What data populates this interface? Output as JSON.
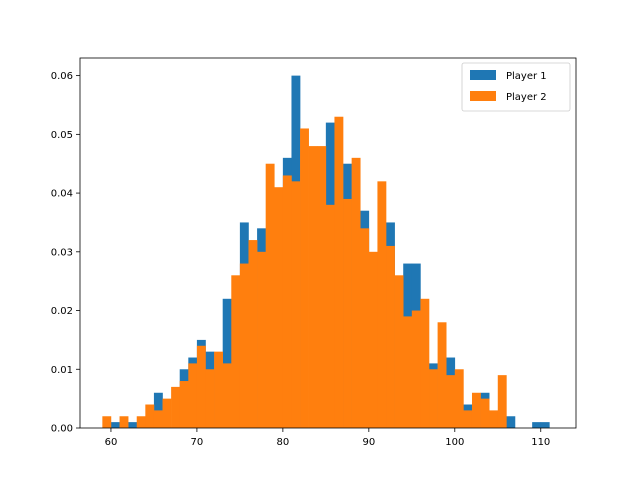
{
  "chart_data": {
    "type": "bar",
    "title": "",
    "xlabel": "",
    "ylabel": "",
    "xlim": [
      56.4,
      114.1
    ],
    "ylim": [
      0,
      0.063
    ],
    "xticks": [
      60,
      70,
      80,
      90,
      100,
      110
    ],
    "xtick_labels": [
      "60",
      "70",
      "80",
      "90",
      "100",
      "110"
    ],
    "yticks": [
      0.0,
      0.01,
      0.02,
      0.03,
      0.04,
      0.05,
      0.06
    ],
    "ytick_labels": [
      "0.00",
      "0.01",
      "0.02",
      "0.03",
      "0.04",
      "0.05",
      "0.06"
    ],
    "grid": false,
    "legend_position": "top-right",
    "series": [
      {
        "name": "Player 1",
        "color": "#1f77b4",
        "bin_width": 1.0,
        "bins": [
          {
            "x": 60,
            "y": 0.001
          },
          {
            "x": 62,
            "y": 0.001
          },
          {
            "x": 65,
            "y": 0.006
          },
          {
            "x": 68,
            "y": 0.01
          },
          {
            "x": 69,
            "y": 0.012
          },
          {
            "x": 70,
            "y": 0.015
          },
          {
            "x": 71,
            "y": 0.013
          },
          {
            "x": 73,
            "y": 0.022
          },
          {
            "x": 75,
            "y": 0.035
          },
          {
            "x": 77,
            "y": 0.034
          },
          {
            "x": 80,
            "y": 0.046
          },
          {
            "x": 81,
            "y": 0.06
          },
          {
            "x": 85,
            "y": 0.052
          },
          {
            "x": 87,
            "y": 0.045
          },
          {
            "x": 89,
            "y": 0.037
          },
          {
            "x": 92,
            "y": 0.035
          },
          {
            "x": 94,
            "y": 0.028
          },
          {
            "x": 95,
            "y": 0.028
          },
          {
            "x": 97,
            "y": 0.011
          },
          {
            "x": 99,
            "y": 0.012
          },
          {
            "x": 101,
            "y": 0.004
          },
          {
            "x": 103,
            "y": 0.006
          },
          {
            "x": 106,
            "y": 0.002
          },
          {
            "x": 109,
            "y": 0.001
          },
          {
            "x": 110,
            "y": 0.001
          }
        ]
      },
      {
        "name": "Player 2",
        "color": "#ff7f0e",
        "bin_width": 1.0,
        "bins": [
          {
            "x": 59,
            "y": 0.002
          },
          {
            "x": 60,
            "y": 0.0
          },
          {
            "x": 61,
            "y": 0.002
          },
          {
            "x": 62,
            "y": 0.0
          },
          {
            "x": 63,
            "y": 0.002
          },
          {
            "x": 64,
            "y": 0.004
          },
          {
            "x": 65,
            "y": 0.003
          },
          {
            "x": 66,
            "y": 0.005
          },
          {
            "x": 67,
            "y": 0.007
          },
          {
            "x": 68,
            "y": 0.008
          },
          {
            "x": 69,
            "y": 0.011
          },
          {
            "x": 70,
            "y": 0.014
          },
          {
            "x": 71,
            "y": 0.01
          },
          {
            "x": 72,
            "y": 0.013
          },
          {
            "x": 73,
            "y": 0.011
          },
          {
            "x": 74,
            "y": 0.026
          },
          {
            "x": 75,
            "y": 0.028
          },
          {
            "x": 76,
            "y": 0.032
          },
          {
            "x": 77,
            "y": 0.03
          },
          {
            "x": 78,
            "y": 0.045
          },
          {
            "x": 79,
            "y": 0.041
          },
          {
            "x": 80,
            "y": 0.043
          },
          {
            "x": 81,
            "y": 0.042
          },
          {
            "x": 82,
            "y": 0.051
          },
          {
            "x": 83,
            "y": 0.048
          },
          {
            "x": 84,
            "y": 0.048
          },
          {
            "x": 85,
            "y": 0.038
          },
          {
            "x": 86,
            "y": 0.053
          },
          {
            "x": 87,
            "y": 0.039
          },
          {
            "x": 88,
            "y": 0.046
          },
          {
            "x": 89,
            "y": 0.034
          },
          {
            "x": 90,
            "y": 0.03
          },
          {
            "x": 91,
            "y": 0.042
          },
          {
            "x": 92,
            "y": 0.031
          },
          {
            "x": 93,
            "y": 0.026
          },
          {
            "x": 94,
            "y": 0.019
          },
          {
            "x": 95,
            "y": 0.02
          },
          {
            "x": 96,
            "y": 0.022
          },
          {
            "x": 97,
            "y": 0.01
          },
          {
            "x": 98,
            "y": 0.018
          },
          {
            "x": 99,
            "y": 0.009
          },
          {
            "x": 100,
            "y": 0.01
          },
          {
            "x": 101,
            "y": 0.003
          },
          {
            "x": 102,
            "y": 0.006
          },
          {
            "x": 103,
            "y": 0.005
          },
          {
            "x": 104,
            "y": 0.003
          },
          {
            "x": 105,
            "y": 0.009
          }
        ]
      }
    ]
  }
}
